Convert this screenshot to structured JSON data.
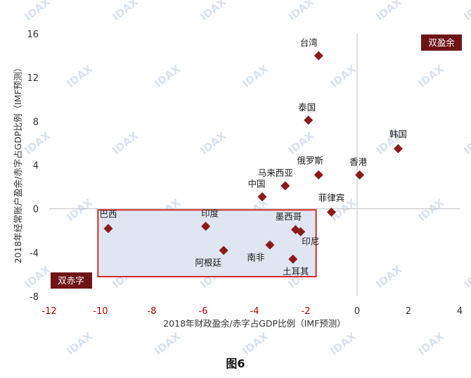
{
  "chart_data": {
    "type": "scatter",
    "xlabel": "2018年财政盈余/赤字占GDP比例（IMF预测）",
    "ylabel": "2018年经常账户盈余/赤字占GDP比例（IMF预测）",
    "xlim": [
      -12,
      4
    ],
    "ylim": [
      -8,
      16
    ],
    "x_ticks": [
      -12,
      -10,
      -8,
      -6,
      -4,
      -2,
      0,
      2,
      4
    ],
    "y_ticks": [
      -8,
      -4,
      0,
      4,
      8,
      12,
      16
    ],
    "grid": false,
    "points": [
      {
        "label": "台湾",
        "x": -1.5,
        "y": 14.0
      },
      {
        "label": "泰国",
        "x": -1.9,
        "y": 8.1
      },
      {
        "label": "韩国",
        "x": 1.6,
        "y": 5.5
      },
      {
        "label": "俄罗斯",
        "x": -1.5,
        "y": 3.1
      },
      {
        "label": "香港",
        "x": 0.1,
        "y": 3.1
      },
      {
        "label": "马来西亚",
        "x": -2.8,
        "y": 2.1
      },
      {
        "label": "中国",
        "x": -3.7,
        "y": 1.1
      },
      {
        "label": "菲律宾",
        "x": -1.0,
        "y": -0.3
      },
      {
        "label": "巴西",
        "x": -9.7,
        "y": -1.8
      },
      {
        "label": "印度",
        "x": -5.9,
        "y": -1.6
      },
      {
        "label": "墨西哥",
        "x": -2.4,
        "y": -1.9
      },
      {
        "label": "印尼",
        "x": -2.2,
        "y": -2.1
      },
      {
        "label": "阿根廷",
        "x": -5.2,
        "y": -3.8
      },
      {
        "label": "南非",
        "x": -3.4,
        "y": -3.3
      },
      {
        "label": "土耳其",
        "x": -2.5,
        "y": -4.6
      }
    ],
    "highlight_region": {
      "x_range": [
        -10.1,
        -1.6
      ],
      "y_range": [
        -6.2,
        -0.1
      ]
    },
    "annotations": {
      "top_right": "双盈余",
      "bottom_left": "双赤字"
    },
    "colors": {
      "marker": "#8b1a1a",
      "box_border": "#d42a2a",
      "box_fill": "#dfe6f2",
      "corner_fill": "#6e1416",
      "negative_x_ticks": "#c00000"
    }
  },
  "caption": "图6",
  "watermark": "IDAX"
}
